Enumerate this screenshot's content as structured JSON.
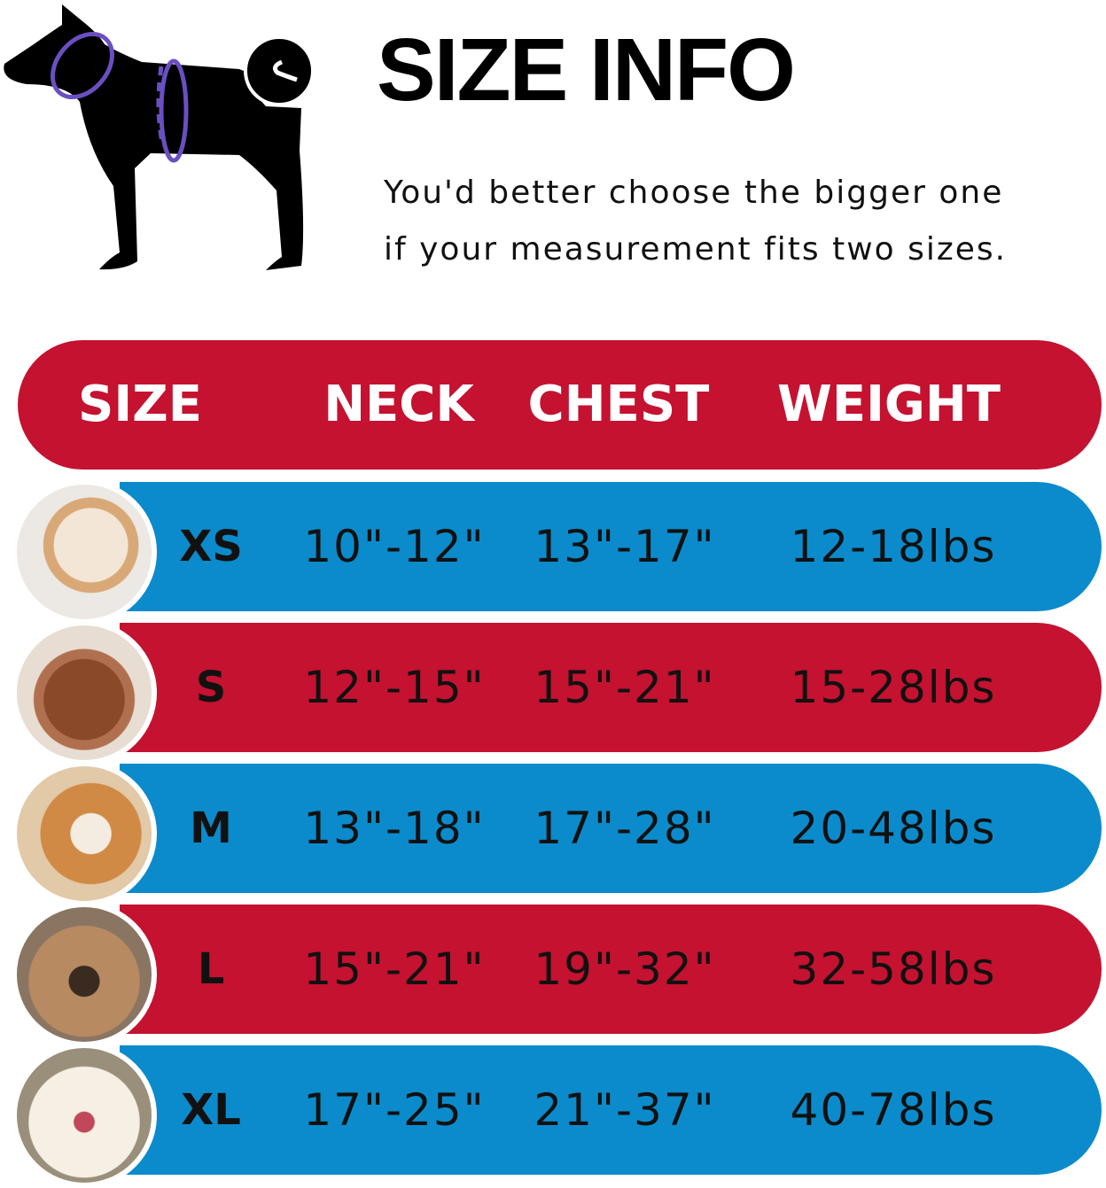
{
  "title": "SIZE INFO",
  "note_line1": "You'd better choose the bigger one",
  "note_line2": "if your measurement fits two sizes.",
  "colors": {
    "red": "#c41230",
    "blue": "#0b8bcb",
    "measure_ring": "#6a4fc1"
  },
  "table": {
    "headers": [
      "SIZE",
      "NECK",
      "CHEST",
      "WEIGHT"
    ],
    "rows": [
      {
        "size": "XS",
        "neck": "10\"-12\"",
        "chest": "13\"-17\"",
        "weight": "12-18lbs",
        "color": "blue",
        "dog": "pomeranian"
      },
      {
        "size": "S",
        "neck": "12\"-15\"",
        "chest": "15\"-21\"",
        "weight": "15-28lbs",
        "color": "red",
        "dog": "poodle"
      },
      {
        "size": "M",
        "neck": "13\"-18\"",
        "chest": "17\"-28\"",
        "weight": "20-48lbs",
        "color": "blue",
        "dog": "shiba-inu"
      },
      {
        "size": "L",
        "neck": "15\"-21\"",
        "chest": "19\"-32\"",
        "weight": "32-58lbs",
        "color": "red",
        "dog": "french-bulldog"
      },
      {
        "size": "XL",
        "neck": "17\"-25\"",
        "chest": "21\"-37\"",
        "weight": "40-78lbs",
        "color": "blue",
        "dog": "labrador"
      }
    ]
  }
}
